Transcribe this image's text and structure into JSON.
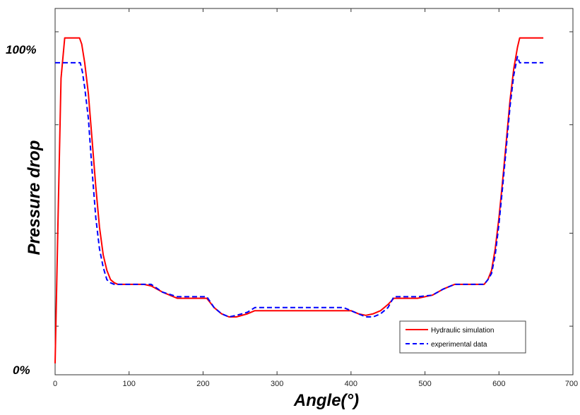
{
  "chart_data": {
    "type": "line",
    "xlabel": "Angle(°)",
    "ylabel": "Pressure drop",
    "xlim": [
      0,
      700
    ],
    "ylim": [
      0,
      110
    ],
    "x_ticks": [
      0,
      100,
      200,
      300,
      400,
      500,
      600,
      700
    ],
    "x_tick_labels": [
      "0",
      "100",
      "200",
      "300",
      "400",
      "500",
      "600",
      "700"
    ],
    "y_tick_labels": [
      {
        "value": 100,
        "label": "100%"
      },
      {
        "value": 0,
        "label": "0%"
      }
    ],
    "grid": false,
    "legend_position": "bottom-right",
    "series": [
      {
        "name": "Hydraulic simulation",
        "color": "#ff0000",
        "style": "solid",
        "x": [
          0,
          4,
          8,
          13,
          33,
          36,
          40,
          45,
          50,
          55,
          60,
          65,
          70,
          75,
          80,
          85,
          90,
          120,
          130,
          145,
          165,
          180,
          205,
          215,
          225,
          235,
          245,
          260,
          270,
          300,
          330,
          360,
          390,
          400,
          410,
          420,
          430,
          440,
          450,
          458,
          470,
          490,
          510,
          525,
          540,
          560,
          580,
          585,
          590,
          595,
          600,
          605,
          610,
          615,
          620,
          625,
          628,
          632,
          660
        ],
        "y": [
          3,
          50,
          95,
          108,
          108,
          106,
          100,
          90,
          75,
          60,
          47,
          38,
          33,
          30,
          29,
          28.5,
          28.5,
          28.5,
          28,
          26,
          24,
          24,
          24,
          21,
          19,
          18,
          18,
          19,
          20,
          20,
          20,
          20,
          20,
          20,
          19,
          18.5,
          19,
          20,
          22,
          24,
          24,
          24,
          25,
          27,
          28.5,
          28.5,
          28.5,
          30,
          33,
          40,
          50,
          62,
          75,
          88,
          98,
          105,
          108,
          108,
          108
        ]
      },
      {
        "name": "experimental data",
        "color": "#0000ff",
        "style": "dashed",
        "x": [
          0,
          34,
          37,
          40,
          45,
          50,
          55,
          60,
          65,
          70,
          75,
          80,
          85,
          90,
          120,
          130,
          145,
          165,
          180,
          205,
          215,
          225,
          235,
          245,
          260,
          270,
          300,
          330,
          360,
          390,
          400,
          410,
          420,
          430,
          440,
          450,
          458,
          470,
          490,
          510,
          525,
          540,
          560,
          580,
          585,
          590,
          595,
          600,
          605,
          610,
          615,
          620,
          625,
          628,
          632,
          660
        ],
        "y": [
          100,
          100,
          97,
          92,
          82,
          65,
          50,
          40,
          34,
          30,
          29,
          28.5,
          28.5,
          28.5,
          28.5,
          28.5,
          26,
          24.5,
          24.5,
          24.5,
          21,
          19,
          18,
          18.5,
          19.5,
          21,
          21,
          21,
          21,
          21,
          20,
          19,
          18,
          18,
          19,
          21,
          24.5,
          24.5,
          24.5,
          25,
          27,
          28.5,
          28.5,
          28.5,
          30,
          32,
          38,
          48,
          60,
          73,
          86,
          96,
          102,
          100,
          100,
          100
        ]
      }
    ]
  }
}
